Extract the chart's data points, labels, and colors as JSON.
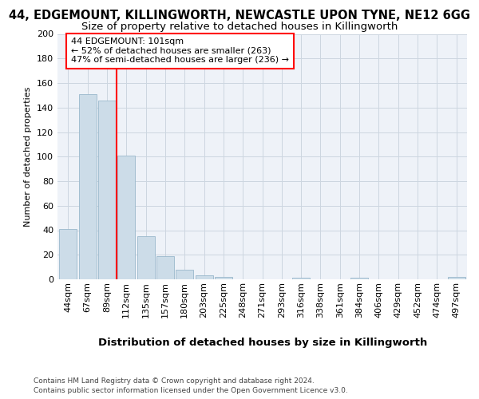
{
  "title_line1": "44, EDGEMOUNT, KILLINGWORTH, NEWCASTLE UPON TYNE, NE12 6GG",
  "title_line2": "Size of property relative to detached houses in Killingworth",
  "xlabel": "Distribution of detached houses by size in Killingworth",
  "ylabel": "Number of detached properties",
  "categories": [
    "44sqm",
    "67sqm",
    "89sqm",
    "112sqm",
    "135sqm",
    "157sqm",
    "180sqm",
    "203sqm",
    "225sqm",
    "248sqm",
    "271sqm",
    "293sqm",
    "316sqm",
    "338sqm",
    "361sqm",
    "384sqm",
    "406sqm",
    "429sqm",
    "452sqm",
    "474sqm",
    "497sqm"
  ],
  "values": [
    41,
    151,
    146,
    101,
    35,
    19,
    8,
    3,
    2,
    0,
    0,
    0,
    1,
    0,
    0,
    1,
    0,
    0,
    0,
    0,
    2
  ],
  "bar_color": "#ccdce8",
  "bar_edge_color": "#9ab8cc",
  "annotation_text_line1": "44 EDGEMOUNT: 101sqm",
  "annotation_text_line2": "← 52% of detached houses are smaller (263)",
  "annotation_text_line3": "47% of semi-detached houses are larger (236) →",
  "annotation_box_color": "white",
  "annotation_box_edge_color": "red",
  "vline_color": "red",
  "vline_x": 2.5,
  "ylim": [
    0,
    200
  ],
  "yticks": [
    0,
    20,
    40,
    60,
    80,
    100,
    120,
    140,
    160,
    180,
    200
  ],
  "footnote_line1": "Contains HM Land Registry data © Crown copyright and database right 2024.",
  "footnote_line2": "Contains public sector information licensed under the Open Government Licence v3.0.",
  "bg_color": "#eef2f8",
  "grid_color": "#ccd6e0",
  "title1_fontsize": 10.5,
  "title2_fontsize": 9.5,
  "xlabel_fontsize": 9.5,
  "ylabel_fontsize": 8,
  "tick_fontsize": 8,
  "footnote_fontsize": 6.5
}
